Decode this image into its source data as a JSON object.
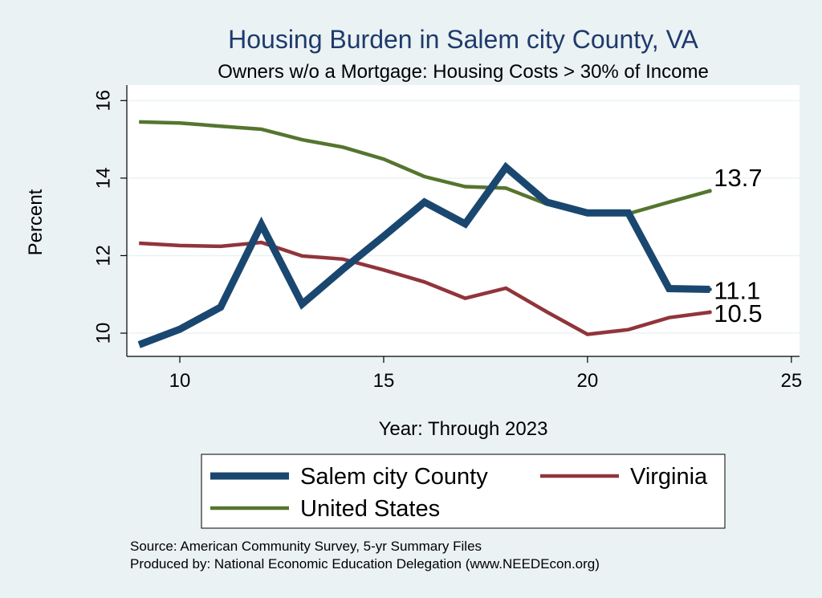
{
  "chart_data": {
    "type": "line",
    "title": "Housing Burden in Salem city County, VA",
    "subtitle": "Owners w/o a Mortgage: Housing Costs > 30% of Income",
    "xlabel": "Year: Through 2023",
    "ylabel": "Percent",
    "xlim": [
      8.7,
      25.2
    ],
    "ylim": [
      9.4,
      16.4
    ],
    "x_ticks": [
      10,
      15,
      20,
      25
    ],
    "y_ticks": [
      10,
      12,
      14,
      16
    ],
    "grid": true,
    "legend_position": "bottom",
    "x": [
      9,
      10,
      11,
      12,
      13,
      14,
      15,
      16,
      17,
      18,
      19,
      20,
      21,
      22,
      23
    ],
    "series": [
      {
        "name": "Salem city County",
        "color": "#1a476f",
        "values": [
          9.7,
          10.1,
          10.67,
          12.8,
          10.75,
          11.65,
          12.5,
          13.38,
          12.82,
          14.28,
          13.38,
          13.1,
          13.1,
          11.15,
          11.13
        ],
        "end_label": "11.1"
      },
      {
        "name": "Virginia",
        "color": "#90353b",
        "values": [
          12.32,
          12.26,
          12.24,
          12.34,
          11.99,
          11.91,
          11.63,
          11.32,
          10.9,
          11.16,
          10.55,
          9.97,
          10.09,
          10.4,
          10.54
        ],
        "end_label": "10.5"
      },
      {
        "name": "United States",
        "color": "#55752f",
        "values": [
          15.45,
          15.42,
          15.34,
          15.26,
          14.99,
          14.8,
          14.49,
          14.04,
          13.78,
          13.74,
          13.33,
          13.07,
          13.08,
          13.38,
          13.67
        ],
        "end_label": "13.7"
      }
    ]
  },
  "source_lines": [
    "Source: American Community Survey, 5-yr Summary Files",
    "Produced by: National Economic Education Delegation (www.NEEDEcon.org)"
  ]
}
